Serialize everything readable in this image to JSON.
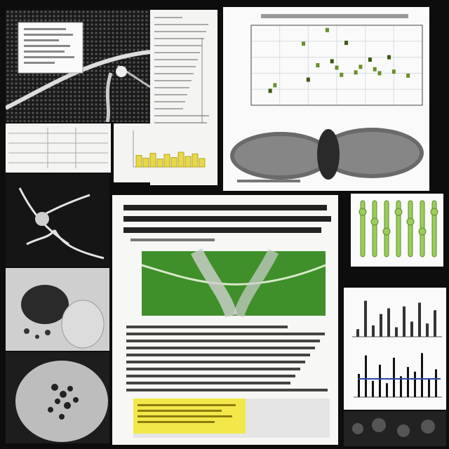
{
  "scatter": {
    "points": [
      {
        "x": 4,
        "y": 18
      },
      {
        "x": 5,
        "y": 25
      },
      {
        "x": 11,
        "y": 77
      },
      {
        "x": 12,
        "y": 32
      },
      {
        "x": 14,
        "y": 50
      },
      {
        "x": 16,
        "y": 94
      },
      {
        "x": 17,
        "y": 55
      },
      {
        "x": 18,
        "y": 47
      },
      {
        "x": 19,
        "y": 38
      },
      {
        "x": 20,
        "y": 78
      },
      {
        "x": 22,
        "y": 41
      },
      {
        "x": 23,
        "y": 48
      },
      {
        "x": 25,
        "y": 57
      },
      {
        "x": 26,
        "y": 45
      },
      {
        "x": 27,
        "y": 40
      },
      {
        "x": 29,
        "y": 60
      },
      {
        "x": 30,
        "y": 42
      },
      {
        "x": 33,
        "y": 37
      }
    ],
    "colors": {
      "point": "#6b8f2a",
      "point_dark": "#3d5a12",
      "grid": "#d8dde2",
      "axis": "#444"
    }
  },
  "mini_bars": {
    "values": [
      0.55,
      0.42,
      0.65,
      0.38,
      0.6,
      0.45,
      0.7,
      0.5,
      0.62,
      0.4
    ],
    "color": "#e8d84a"
  },
  "histogram_top": {
    "values": [
      0.2,
      0.95,
      0.3,
      0.6,
      0.75,
      0.25,
      0.8,
      0.4,
      0.9,
      0.35,
      0.7
    ],
    "color": "#333"
  },
  "histogram_bottom": {
    "values": [
      0.5,
      0.9,
      0.35,
      0.7,
      0.3,
      0.85,
      0.45,
      0.65,
      0.55,
      0.95,
      0.4,
      0.6
    ],
    "color": "#111",
    "accent": "#2a4aa8"
  },
  "stems": {
    "count": 7,
    "color": "#9ccc5a",
    "dark": "#5f8f2a"
  },
  "colors": {
    "leaf_green": "#3f8f2a",
    "highlight": "#f3e84a",
    "paper": "#f4f4f2"
  }
}
